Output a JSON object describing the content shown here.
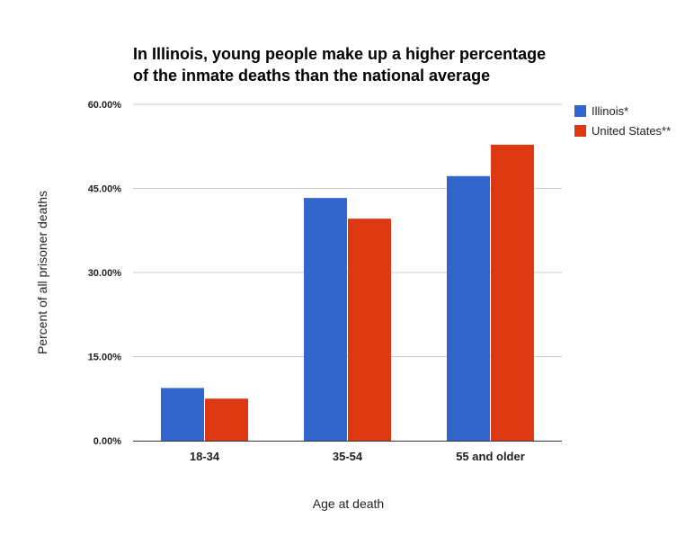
{
  "chart_data": {
    "type": "bar",
    "title_lines": [
      "In Illinois, young people make up a higher percentage",
      "of the inmate deaths than the national average"
    ],
    "categories": [
      "18-34",
      "35-54",
      "55 and older"
    ],
    "series": [
      {
        "name": "Illinois*",
        "color": "#3366cc",
        "values": [
          9.4,
          43.3,
          47.2
        ]
      },
      {
        "name": "United States**",
        "color": "#dc3912",
        "values": [
          7.5,
          39.6,
          52.8
        ]
      }
    ],
    "xlabel": "Age at death",
    "ylabel": "Percent of all prisoner deaths",
    "ylim": [
      0,
      60
    ],
    "yticks": [
      0,
      15,
      30,
      45,
      60
    ],
    "ytick_labels": [
      "0.00%",
      "15.00%",
      "30.00%",
      "45.00%",
      "60.00%"
    ],
    "grid": true,
    "legend_position": "right"
  }
}
